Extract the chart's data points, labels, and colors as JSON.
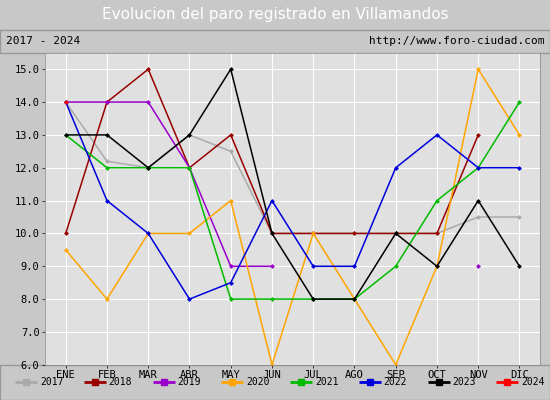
{
  "title": "Evolucion del paro registrado en Villamandos",
  "subtitle_left": "2017 - 2024",
  "subtitle_right": "http://www.foro-ciudad.com",
  "ylim": [
    6.0,
    15.5
  ],
  "yticks": [
    6.0,
    7.0,
    8.0,
    9.0,
    10.0,
    11.0,
    12.0,
    13.0,
    14.0,
    15.0
  ],
  "months": [
    "ENE",
    "FEB",
    "MAR",
    "ABR",
    "MAY",
    "JUN",
    "JUL",
    "AGO",
    "SEP",
    "OCT",
    "NOV",
    "DIC"
  ],
  "series": [
    {
      "year": "2017",
      "color": "#aaaaaa",
      "data": [
        14.0,
        12.2,
        12.0,
        13.0,
        12.5,
        10.0,
        10.0,
        10.0,
        10.0,
        10.0,
        10.5,
        10.5
      ]
    },
    {
      "year": "2018",
      "color": "#990000",
      "data": [
        10.0,
        14.0,
        15.0,
        12.0,
        13.0,
        10.0,
        10.0,
        10.0,
        10.0,
        10.0,
        13.0,
        null
      ]
    },
    {
      "year": "2019",
      "color": "#9900cc",
      "data": [
        14.0,
        14.0,
        14.0,
        12.0,
        9.0,
        9.0,
        null,
        null,
        null,
        null,
        9.0,
        null
      ]
    },
    {
      "year": "2020",
      "color": "#ffa500",
      "data": [
        9.5,
        8.0,
        10.0,
        10.0,
        11.0,
        6.0,
        10.0,
        8.0,
        6.0,
        9.0,
        15.0,
        13.0
      ]
    },
    {
      "year": "2021",
      "color": "#00bb00",
      "data": [
        13.0,
        12.0,
        12.0,
        12.0,
        8.0,
        8.0,
        8.0,
        8.0,
        9.0,
        11.0,
        12.0,
        14.0
      ]
    },
    {
      "year": "2022",
      "color": "#0000dd",
      "data": [
        14.0,
        11.0,
        10.0,
        8.0,
        8.5,
        11.0,
        9.0,
        9.0,
        12.0,
        13.0,
        12.0,
        12.0
      ]
    },
    {
      "year": "2023",
      "color": "#000000",
      "data": [
        13.0,
        13.0,
        12.0,
        13.0,
        15.0,
        10.0,
        8.0,
        8.0,
        10.0,
        9.0,
        11.0,
        9.0
      ]
    },
    {
      "year": "2024",
      "color": "#ff0000",
      "data": [
        14.0,
        null,
        null,
        null,
        null,
        null,
        null,
        null,
        null,
        null,
        null,
        null
      ]
    }
  ],
  "fig_bg_color": "#c8c8c8",
  "plot_bg_color": "#e0e0e0",
  "title_bg_color": "#4472c4",
  "title_fg_color": "#ffffff",
  "subtitle_bg_color": "#ffffff",
  "legend_bg_color": "#f5f5f5"
}
